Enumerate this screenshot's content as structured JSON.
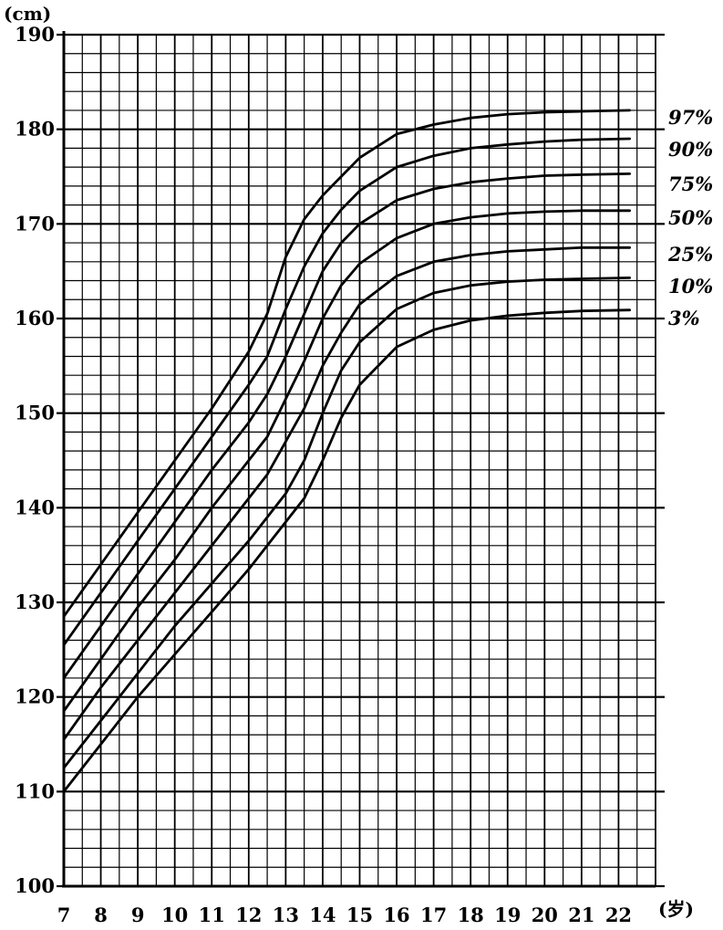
{
  "chart_data": {
    "type": "line",
    "title": "",
    "ylabel": "(cm)",
    "xlabel": "(岁)",
    "ylim": [
      100,
      190
    ],
    "xlim": [
      7,
      23
    ],
    "grid": true,
    "y_ticks": [
      "100",
      "110",
      "120",
      "130",
      "140",
      "150",
      "160",
      "170",
      "180",
      "190"
    ],
    "x_ticks": [
      "7",
      "8",
      "9",
      "10",
      "11",
      "12",
      "13",
      "14",
      "15",
      "16",
      "17",
      "18",
      "19",
      "20",
      "21",
      "22"
    ],
    "series": [
      {
        "name": "97%",
        "x": [
          7,
          8,
          9,
          10,
          11,
          12,
          12.5,
          13,
          13.5,
          14,
          14.5,
          15,
          16,
          17,
          18,
          19,
          20,
          21,
          22.3
        ],
        "y": [
          128.5,
          134,
          139.5,
          145,
          150.5,
          156.5,
          160.5,
          166.5,
          170.5,
          173,
          175,
          177,
          179.5,
          180.5,
          181.2,
          181.6,
          181.8,
          181.9,
          182
        ]
      },
      {
        "name": "90%",
        "x": [
          7,
          8,
          9,
          10,
          11,
          12,
          12.5,
          13,
          13.5,
          14,
          14.5,
          15,
          16,
          17,
          18,
          19,
          20,
          21,
          22.3
        ],
        "y": [
          125.5,
          131,
          136.5,
          142,
          147.5,
          153,
          156,
          161,
          165.5,
          169,
          171.5,
          173.5,
          176,
          177.2,
          178,
          178.4,
          178.7,
          178.9,
          179
        ]
      },
      {
        "name": "75%",
        "x": [
          7,
          8,
          9,
          10,
          11,
          12,
          12.5,
          13,
          13.5,
          14,
          14.5,
          15,
          16,
          17,
          18,
          19,
          20,
          21,
          22.3
        ],
        "y": [
          122,
          127.5,
          133,
          138.5,
          144,
          149,
          152,
          156,
          160.5,
          165,
          168,
          170,
          172.5,
          173.7,
          174.4,
          174.8,
          175.1,
          175.2,
          175.3
        ]
      },
      {
        "name": "50%",
        "x": [
          7,
          8,
          9,
          10,
          11,
          12,
          12.5,
          13,
          13.5,
          14,
          14.5,
          15,
          16,
          17,
          18,
          19,
          20,
          21,
          22.3
        ],
        "y": [
          118.5,
          124,
          129.5,
          134.5,
          140,
          145,
          147.5,
          151.5,
          155.5,
          160,
          163.5,
          165.8,
          168.5,
          170,
          170.7,
          171.1,
          171.3,
          171.4,
          171.4
        ]
      },
      {
        "name": "25%",
        "x": [
          7,
          8,
          9,
          10,
          11,
          12,
          12.5,
          13,
          13.5,
          14,
          14.5,
          15,
          16,
          17,
          18,
          19,
          20,
          21,
          22.3
        ],
        "y": [
          115.5,
          121,
          126,
          131,
          136,
          141,
          143.5,
          147,
          150.5,
          155,
          158.5,
          161.5,
          164.5,
          166,
          166.7,
          167.1,
          167.3,
          167.5,
          167.5
        ]
      },
      {
        "name": "10%",
        "x": [
          7,
          8,
          9,
          10,
          11,
          12,
          12.5,
          13,
          13.5,
          14,
          14.5,
          15,
          16,
          17,
          18,
          19,
          20,
          21,
          22.3
        ],
        "y": [
          112.5,
          117.5,
          122.5,
          127.5,
          132,
          136.5,
          139,
          141.5,
          145,
          150,
          154.5,
          157.5,
          161,
          162.7,
          163.5,
          163.9,
          164.1,
          164.2,
          164.3
        ]
      },
      {
        "name": "3%",
        "x": [
          7,
          8,
          9,
          10,
          11,
          12,
          12.5,
          13,
          13.5,
          14,
          14.5,
          15,
          16,
          17,
          18,
          19,
          20,
          21,
          22.3
        ],
        "y": [
          110,
          115,
          120,
          124.5,
          129,
          133.5,
          136,
          138.5,
          141,
          145,
          149.5,
          153,
          157,
          158.8,
          159.8,
          160.3,
          160.6,
          160.8,
          160.9
        ]
      }
    ]
  }
}
